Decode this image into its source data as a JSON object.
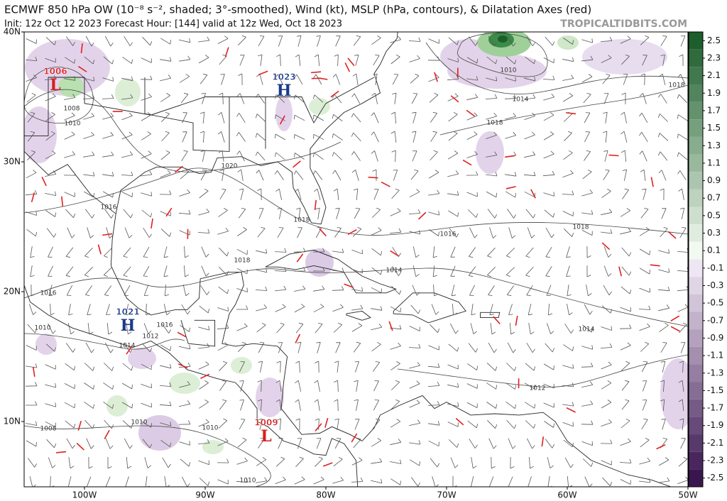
{
  "header": {
    "title": "ECMWF 850 hPa OW (10⁻⁸ s⁻², shaded; 3°-smoothed), Wind (kt), MSLP (hPa, contours), & Dilatation Axes (red)",
    "subtitle": "Init: 12z Oct 12 2023   Forecast Hour: [144]   valid at 12z Wed, Oct 18 2023",
    "source": "TROPICALTIDBITS.COM"
  },
  "map": {
    "lat_labels": [
      "40N",
      "30N",
      "20N",
      "10N"
    ],
    "lon_labels": [
      "100W",
      "90W",
      "80W",
      "70W",
      "60W",
      "50W"
    ]
  },
  "colorbar": {
    "ticks": [
      2.5,
      2.3,
      2.1,
      1.9,
      1.7,
      1.5,
      1.3,
      1.1,
      0.9,
      0.7,
      0.5,
      0.3,
      0.1,
      -0.1,
      -0.3,
      -0.5,
      -0.7,
      -0.9,
      -1.1,
      -1.3,
      -1.5,
      -1.7,
      -1.9,
      -2.1,
      -2.3,
      -2.5
    ]
  },
  "centers": [
    {
      "letter": "L",
      "value": 1006
    },
    {
      "letter": "H",
      "value": 1023
    },
    {
      "letter": "H",
      "value": 1021
    },
    {
      "letter": "L",
      "value": 1009
    }
  ],
  "contour_labels": [
    1008,
    1010,
    1010,
    1014,
    1018,
    1018,
    1020,
    1016,
    1018,
    1016,
    1018,
    1018,
    1014,
    1016,
    1010,
    1012,
    1016,
    1014,
    1014,
    1012,
    1008,
    1010,
    1010,
    1010
  ]
}
